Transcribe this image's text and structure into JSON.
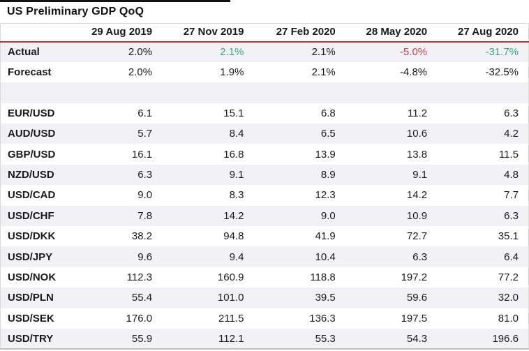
{
  "title": "US Preliminary GDP QoQ",
  "colors": {
    "green_value": "#3aa287",
    "red_value": "#c94049",
    "header_rule_red": "#a93842",
    "row_shade": "#f2f2f6",
    "table_border": "#d9d9d9"
  },
  "chart_data": {
    "type": "table",
    "title": "US Preliminary GDP QoQ",
    "columns": [
      "",
      "29 Aug 2019",
      "27 Nov 2019",
      "27 Feb 2020",
      "28 May 2020",
      "27 Aug 2020"
    ],
    "rows": [
      {
        "label": "Actual",
        "cells": [
          {
            "v": "2.0%"
          },
          {
            "v": "2.1%",
            "c": "green"
          },
          {
            "v": "2.1%"
          },
          {
            "v": "-5.0%",
            "c": "red"
          },
          {
            "v": "-31.7%",
            "c": "green"
          }
        ]
      },
      {
        "label": "Forecast",
        "cells": [
          {
            "v": "2.0%"
          },
          {
            "v": "1.9%"
          },
          {
            "v": "2.1%"
          },
          {
            "v": "-4.8%"
          },
          {
            "v": "-32.5%"
          }
        ]
      },
      {
        "label": "",
        "spacer": true,
        "cells": [
          {
            "v": ""
          },
          {
            "v": ""
          },
          {
            "v": ""
          },
          {
            "v": ""
          },
          {
            "v": ""
          }
        ]
      },
      {
        "label": "EUR/USD",
        "cells": [
          {
            "v": "6.1"
          },
          {
            "v": "15.1"
          },
          {
            "v": "6.8"
          },
          {
            "v": "11.2"
          },
          {
            "v": "6.3"
          }
        ]
      },
      {
        "label": "AUD/USD",
        "cells": [
          {
            "v": "5.7"
          },
          {
            "v": "8.4"
          },
          {
            "v": "6.5"
          },
          {
            "v": "10.6"
          },
          {
            "v": "4.2"
          }
        ]
      },
      {
        "label": "GBP/USD",
        "cells": [
          {
            "v": "16.1"
          },
          {
            "v": "16.8"
          },
          {
            "v": "13.9"
          },
          {
            "v": "13.8"
          },
          {
            "v": "11.5"
          }
        ]
      },
      {
        "label": "NZD/USD",
        "cells": [
          {
            "v": "6.3"
          },
          {
            "v": "9.1"
          },
          {
            "v": "8.9"
          },
          {
            "v": "9.1"
          },
          {
            "v": "4.8"
          }
        ]
      },
      {
        "label": "USD/CAD",
        "cells": [
          {
            "v": "9.0"
          },
          {
            "v": "8.3"
          },
          {
            "v": "12.3"
          },
          {
            "v": "14.2"
          },
          {
            "v": "7.7"
          }
        ]
      },
      {
        "label": "USD/CHF",
        "cells": [
          {
            "v": "7.8"
          },
          {
            "v": "14.2"
          },
          {
            "v": "9.0"
          },
          {
            "v": "10.9"
          },
          {
            "v": "6.3"
          }
        ]
      },
      {
        "label": "USD/DKK",
        "cells": [
          {
            "v": "38.2"
          },
          {
            "v": "94.8"
          },
          {
            "v": "41.9"
          },
          {
            "v": "72.7"
          },
          {
            "v": "35.1"
          }
        ]
      },
      {
        "label": "USD/JPY",
        "cells": [
          {
            "v": "9.6"
          },
          {
            "v": "9.4"
          },
          {
            "v": "10.4"
          },
          {
            "v": "6.3"
          },
          {
            "v": "6.4"
          }
        ]
      },
      {
        "label": "USD/NOK",
        "cells": [
          {
            "v": "112.3"
          },
          {
            "v": "160.9"
          },
          {
            "v": "118.8"
          },
          {
            "v": "197.2"
          },
          {
            "v": "77.2"
          }
        ]
      },
      {
        "label": "USD/PLN",
        "cells": [
          {
            "v": "55.4"
          },
          {
            "v": "101.0"
          },
          {
            "v": "39.5"
          },
          {
            "v": "59.6"
          },
          {
            "v": "32.0"
          }
        ]
      },
      {
        "label": "USD/SEK",
        "cells": [
          {
            "v": "176.0"
          },
          {
            "v": "211.5"
          },
          {
            "v": "136.3"
          },
          {
            "v": "197.5"
          },
          {
            "v": "81.0"
          }
        ]
      },
      {
        "label": "USD/TRY",
        "cells": [
          {
            "v": "55.9"
          },
          {
            "v": "112.1"
          },
          {
            "v": "55.3"
          },
          {
            "v": "54.3"
          },
          {
            "v": "196.6"
          }
        ]
      }
    ]
  }
}
